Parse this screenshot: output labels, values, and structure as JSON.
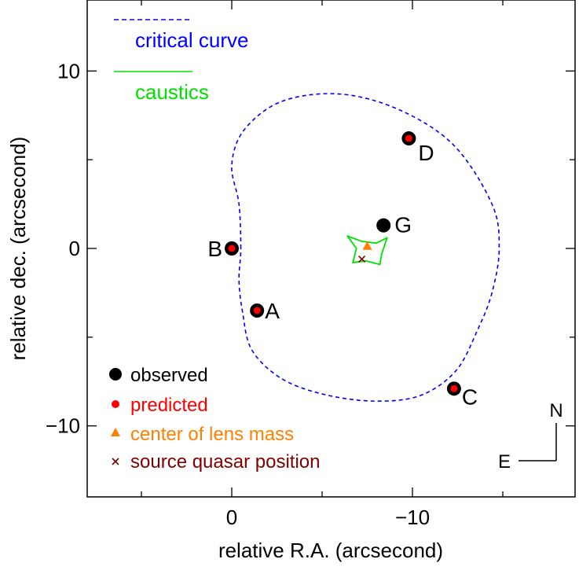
{
  "chart_data": {
    "type": "scatter",
    "title": "",
    "xlabel": "relative R.A. (arcsecond)",
    "ylabel": "relative dec. (arcsecond)",
    "xlim": [
      8,
      -19
    ],
    "ylim": [
      -14,
      14
    ],
    "x_ticks": [
      0,
      -10
    ],
    "x_tick_labels": [
      "0",
      "−10"
    ],
    "y_ticks": [
      10,
      0,
      -10
    ],
    "y_tick_labels": [
      "10",
      "0",
      "−10"
    ],
    "grid": false,
    "images": [
      {
        "label": "A",
        "x": -1.4,
        "y": -3.5
      },
      {
        "label": "B",
        "x": 0.0,
        "y": 0.0
      },
      {
        "label": "C",
        "x": -12.3,
        "y": -7.9
      },
      {
        "label": "D",
        "x": -9.8,
        "y": 6.2
      }
    ],
    "galaxy": {
      "label": "G",
      "x": -8.4,
      "y": 1.3
    },
    "lens_center": {
      "x": -7.5,
      "y": 0.1
    },
    "source_position": {
      "x": -7.2,
      "y": -0.6
    },
    "critical_curve": {
      "name": "critical curve",
      "color": "#0000ff",
      "points": [
        [
          -0.5,
          0.0
        ],
        [
          -0.4,
          2.5
        ],
        [
          0.0,
          4.7
        ],
        [
          -0.7,
          6.7
        ],
        [
          -2.8,
          8.3
        ],
        [
          -6.0,
          8.7
        ],
        [
          -9.3,
          7.8
        ],
        [
          -12.3,
          5.8
        ],
        [
          -14.4,
          2.5
        ],
        [
          -14.8,
          0.0
        ],
        [
          -14.4,
          -2.5
        ],
        [
          -13.6,
          -4.6
        ],
        [
          -12.4,
          -6.9
        ],
        [
          -10.4,
          -8.3
        ],
        [
          -7.8,
          -8.6
        ],
        [
          -5.0,
          -8.2
        ],
        [
          -2.7,
          -7.3
        ],
        [
          -1.1,
          -5.7
        ],
        [
          -0.6,
          -3.6
        ],
        [
          -0.4,
          -1.8
        ],
        [
          -0.5,
          0.0
        ]
      ]
    },
    "caustics": {
      "name": "caustics",
      "color": "#00e000",
      "points": [
        [
          -6.4,
          0.7
        ],
        [
          -7.2,
          0.4
        ],
        [
          -8.0,
          0.3
        ],
        [
          -8.6,
          0.6
        ],
        [
          -8.3,
          -0.3
        ],
        [
          -8.2,
          -0.9
        ],
        [
          -7.4,
          -0.7
        ],
        [
          -6.7,
          -0.8
        ],
        [
          -6.9,
          0.0
        ],
        [
          -6.4,
          0.7
        ]
      ]
    },
    "legend_top": [
      {
        "label": "critical curve",
        "color": "#0000ff",
        "style": "dashed"
      },
      {
        "label": "caustics",
        "color": "#00e000",
        "style": "solid"
      }
    ],
    "legend_bottom": [
      {
        "label": "observed",
        "color": "#000000",
        "marker": "big-dot"
      },
      {
        "label": "predicted",
        "color": "#ff0000",
        "marker": "small-dot"
      },
      {
        "label": "center of lens mass",
        "color": "#ff8000",
        "marker": "triangle"
      },
      {
        "label": "source quasar position",
        "color": "#800000",
        "marker": "x"
      }
    ],
    "compass": {
      "north": "N",
      "east": "E"
    }
  }
}
